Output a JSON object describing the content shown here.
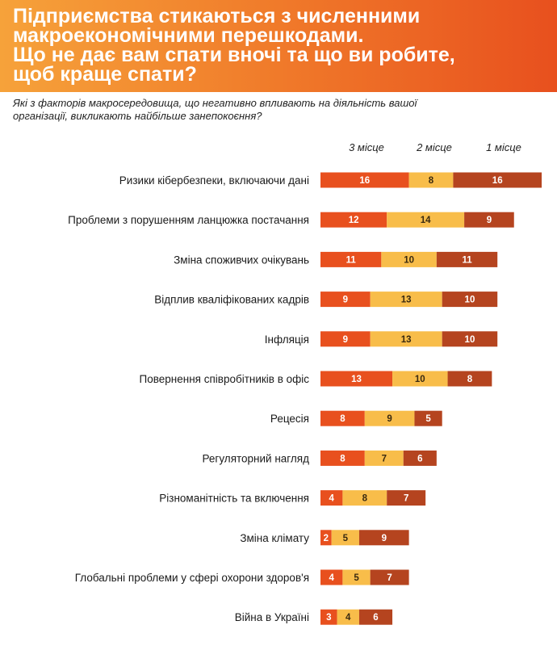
{
  "header": {
    "title": "Підприємства стикаються з численними\nмакроекономічними перешкодами.\nЩо не дає вам спати вночі та що ви робите,\nщоб краще спати?"
  },
  "subtitle": "Які з факторів макросередовища, що негативно впливають на діяльність вашої\nорганізації, викликають найбільше занепокоєння?",
  "colors": {
    "third": "#e8501e",
    "second": "#f8bd4a",
    "first": "#b5441f",
    "header_start": "#f6a23a",
    "header_end": "#e8501e"
  },
  "chart_data": {
    "type": "bar",
    "orientation": "horizontal",
    "stacked": true,
    "legend_position": "top",
    "categories": [
      "Ризики кібербезпеки, включаючи дані",
      "Проблеми з порушенням ланцюжка постачання",
      "Зміна споживчих очікувань",
      "Відплив кваліфікованих кадрів",
      "Інфляція",
      "Повернення співробітників в офіс",
      "Рецесія",
      "Регуляторний нагляд",
      "Різноманітність та включення",
      "Зміна клімату",
      "Глобальні проблеми у сфері охорони здоров'я",
      "Війна в Україні"
    ],
    "series": [
      {
        "name": "3 місце",
        "color": "#e8501e",
        "values": [
          16,
          12,
          11,
          9,
          9,
          13,
          8,
          8,
          4,
          2,
          4,
          3
        ]
      },
      {
        "name": "2 місце",
        "color": "#f8bd4a",
        "values": [
          8,
          14,
          10,
          13,
          13,
          10,
          9,
          7,
          8,
          5,
          5,
          4
        ]
      },
      {
        "name": "1 місце",
        "color": "#b5441f",
        "values": [
          16,
          9,
          11,
          10,
          10,
          8,
          5,
          6,
          7,
          9,
          7,
          6
        ]
      }
    ],
    "xlim": [
      0,
      40
    ],
    "grid": false
  }
}
